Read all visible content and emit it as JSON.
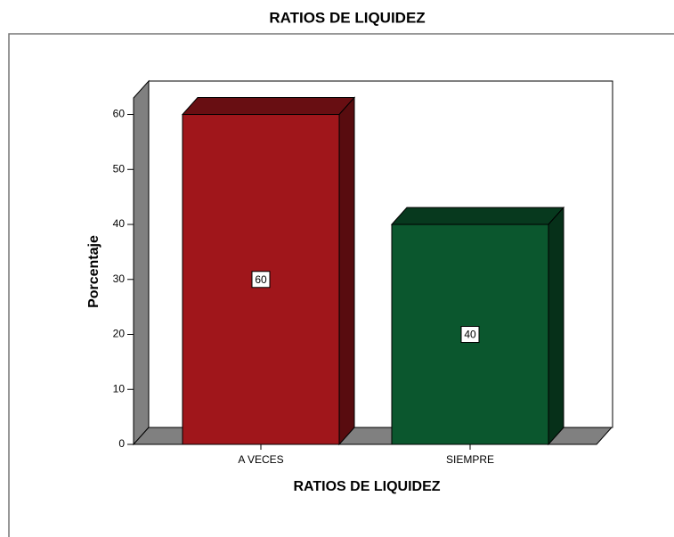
{
  "chart_data": {
    "type": "bar3d",
    "title": "RATIOS DE LIQUIDEZ",
    "x_label": "RATIOS DE LIQUIDEZ",
    "y_label": "Porcentaje",
    "categories": [
      "A VECES",
      "SIEMPRE"
    ],
    "values": [
      60,
      40
    ],
    "colors": [
      "#a0161b",
      "#0b572e"
    ],
    "ylim": [
      0,
      63
    ],
    "yticks": [
      0,
      10,
      20,
      30,
      40,
      50,
      60
    ]
  }
}
